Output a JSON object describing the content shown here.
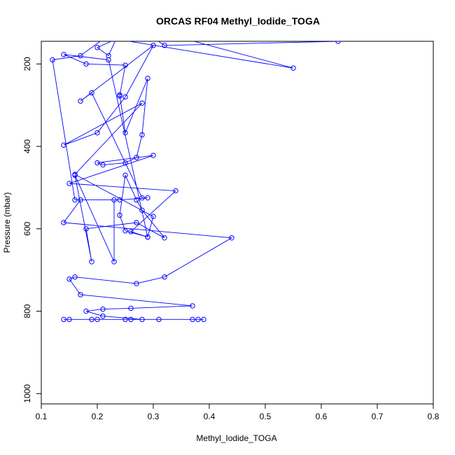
{
  "chart_data": {
    "type": "line",
    "title": "ORCAS RF04 Methyl_Iodide_TOGA",
    "xlabel": "Methyl_Iodide_TOGA",
    "ylabel": "Pressure (mbar)",
    "xlim": [
      0.1,
      0.8
    ],
    "ylim": [
      1025,
      145
    ],
    "y_reversed": true,
    "grid": false,
    "line_color": "#0000ff",
    "marker": "open-circle",
    "xticks": [
      0.1,
      0.2,
      0.3,
      0.4,
      0.5,
      0.6,
      0.7,
      0.8
    ],
    "xtick_labels": [
      "0.1",
      "0.2",
      "0.3",
      "0.4",
      "0.5",
      "0.6",
      "0.7",
      "0.8"
    ],
    "yticks": [
      200,
      400,
      600,
      800,
      1000
    ],
    "ytick_labels": [
      "200",
      "400",
      "600",
      "800",
      "1000"
    ],
    "series": [
      {
        "x": [
          0.15,
          0.19,
          0.25,
          0.31,
          0.37,
          0.38,
          0.39,
          0.14,
          0.2,
          0.26,
          0.28,
          0.21,
          0.18,
          0.21,
          0.26,
          0.37,
          0.17,
          0.15,
          0.16,
          0.27,
          0.32,
          0.44,
          0.14,
          0.17,
          0.23,
          0.23,
          0.16,
          0.19,
          0.18,
          0.27,
          0.32,
          0.28,
          0.27,
          0.25,
          0.24,
          0.25,
          0.29,
          0.26,
          0.34,
          0.15,
          0.3,
          0.2,
          0.21,
          0.25,
          0.27,
          0.28,
          0.29,
          0.25,
          0.24,
          0.24,
          0.25,
          0.18,
          0.14,
          0.22,
          0.29,
          0.3,
          0.16,
          0.28,
          0.14,
          0.2,
          0.25,
          0.3,
          0.17,
          0.19,
          0.28,
          0.29,
          0.24,
          0.16,
          0.12,
          0.17,
          0.25,
          0.55,
          0.19,
          0.26,
          0.32,
          0.63,
          0.28,
          0.25,
          0.2,
          0.22,
          0.24
        ],
        "y": [
          820,
          820,
          820,
          820,
          820,
          820,
          820,
          820,
          820,
          820,
          820,
          812,
          800,
          795,
          793,
          787,
          760,
          722,
          717,
          733,
          717,
          622,
          585,
          530,
          530,
          680,
          470,
          680,
          600,
          585,
          622,
          555,
          530,
          470,
          567,
          605,
          620,
          607,
          508,
          490,
          422,
          440,
          445,
          440,
          427,
          372,
          235,
          367,
          275,
          278,
          203,
          200,
          177,
          190,
          620,
          570,
          468,
          295,
          397,
          367,
          280,
          155,
          290,
          270,
          525,
          525,
          530,
          530,
          190,
          180,
          100,
          210,
          130,
          100,
          155,
          145,
          140,
          130,
          160,
          180,
          120
        ]
      }
    ]
  }
}
